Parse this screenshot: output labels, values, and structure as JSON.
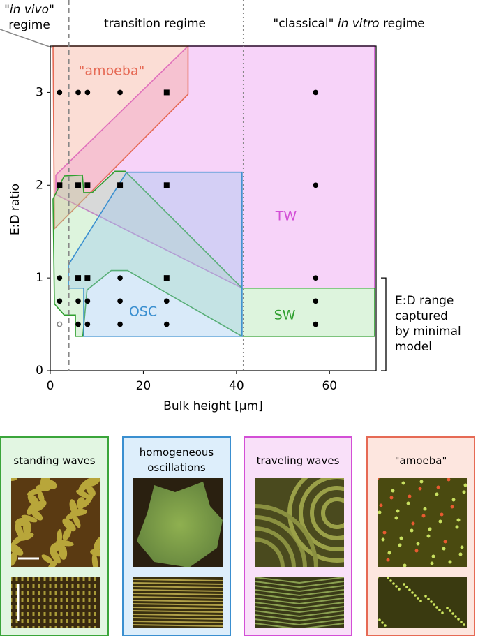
{
  "chart_data": {
    "type": "scatter",
    "regime_labels": [
      {
        "before": "\"",
        "italic": "in vivo",
        "after": "\"",
        "line2": "regime"
      },
      {
        "before": "transition regime"
      },
      {
        "before": "\"classical\" ",
        "italic": "in vitro",
        "after": " regime"
      }
    ],
    "xlabel": "Bulk height [μm]",
    "ylabel": "E:D ratio",
    "xlim": [
      0,
      70
    ],
    "ylim": [
      0,
      3.5
    ],
    "xticks": [
      0,
      20,
      40,
      60
    ],
    "yticks": [
      0,
      1,
      2,
      3
    ],
    "regions": [
      {
        "label": "TW",
        "color": "#d34fd6",
        "fill": "#ea8cee",
        "x": [
          1.2,
          29.6,
          69.7,
          69.7,
          41.2,
          1.2
        ],
        "y": [
          2.11,
          3.5,
          3.5,
          0.89,
          0.89,
          1.9
        ]
      },
      {
        "label": "\"amoeba\"",
        "color": "#e66a55",
        "fill": "#f5a591",
        "x": [
          0.6,
          29.6,
          29.6,
          0.9
        ],
        "y": [
          3.5,
          3.5,
          2.98,
          1.53
        ]
      },
      {
        "label": "SW",
        "color": "#2f9f2f",
        "fill": "#a6e3a6",
        "x": [
          0.6,
          3,
          6.9,
          7.2,
          9,
          13.9,
          16.1,
          41.2,
          69.7,
          69.7,
          41.2,
          16.6,
          13.1,
          7.9,
          7,
          5.4,
          5.4,
          3,
          0.9
        ],
        "y": [
          1.85,
          2.1,
          2.11,
          1.92,
          1.92,
          2.15,
          2.15,
          0.89,
          0.89,
          0.37,
          0.37,
          1.08,
          1.08,
          0.87,
          0.37,
          0.37,
          0.6,
          0.6,
          0.72
        ]
      },
      {
        "label": "OSC",
        "color": "#3a8fd0",
        "fill": "#9cc8f0",
        "x": [
          3.9,
          16.4,
          41.2,
          41.2,
          7.2,
          7.2,
          3.9
        ],
        "y": [
          1.14,
          2.14,
          2.14,
          0.37,
          0.37,
          0.89,
          0.89
        ]
      }
    ],
    "vlines": [
      {
        "x": 4,
        "style": "dashed"
      },
      {
        "x": 41.5,
        "style": "dotted"
      }
    ],
    "series": [
      {
        "marker": "circle",
        "color": "#000000",
        "x": [
          2,
          6,
          8,
          15,
          57,
          57,
          2,
          15,
          57,
          2,
          6,
          8,
          15,
          25,
          57,
          6,
          8,
          15,
          25,
          57
        ],
        "y": [
          3,
          3,
          3,
          3,
          3,
          2,
          1,
          1,
          1,
          0.75,
          0.75,
          0.75,
          0.75,
          0.75,
          0.75,
          0.5,
          0.5,
          0.5,
          0.5,
          0.5
        ]
      },
      {
        "marker": "square",
        "color": "#000000",
        "x": [
          25,
          2,
          6,
          8,
          15,
          25,
          6,
          8,
          25
        ],
        "y": [
          3,
          2,
          2,
          2,
          2,
          2,
          1,
          1,
          1
        ]
      },
      {
        "marker": "open-circle",
        "color": "#888888",
        "x": [
          2
        ],
        "y": [
          0.5
        ]
      }
    ],
    "bracket": {
      "y": [
        0,
        1
      ],
      "lines": [
        "E:D range",
        "captured",
        "by minimal",
        "model"
      ]
    }
  },
  "panels": [
    {
      "title": [
        "standing waves"
      ],
      "color": "#3aa53a",
      "fill": "#e2f6e2"
    },
    {
      "title": [
        "homogeneous",
        "oscillations"
      ],
      "color": "#3a8fd0",
      "fill": "#ddeefb"
    },
    {
      "title": [
        "traveling waves"
      ],
      "color": "#d34fd6",
      "fill": "#f9e0f9"
    },
    {
      "title": [
        "\"amoeba\""
      ],
      "color": "#e66a55",
      "fill": "#fde6df"
    }
  ]
}
